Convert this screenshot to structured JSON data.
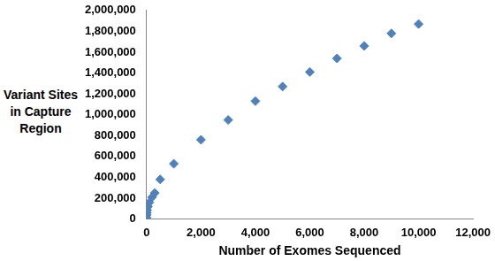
{
  "chart_data": {
    "type": "scatter",
    "x_label": "Number of Exomes Sequenced",
    "y_label": "Variant Sites in Capture Region",
    "x": [
      1,
      5,
      10,
      20,
      50,
      100,
      200,
      300,
      500,
      1000,
      2000,
      3000,
      4000,
      5000,
      6000,
      7000,
      8000,
      9000,
      10000
    ],
    "values": [
      15000,
      40000,
      60000,
      85000,
      120000,
      160000,
      210000,
      250000,
      380000,
      530000,
      760000,
      950000,
      1130000,
      1270000,
      1410000,
      1540000,
      1660000,
      1780000,
      1870000
    ],
    "color": "#4f81bd",
    "marker": "diamond",
    "grid": false,
    "xlim": [
      0,
      12000
    ],
    "xticks": [
      0,
      {
        "value": 2000,
        "label": "2,000"
      },
      {
        "value": 4000,
        "label": "4,000"
      },
      {
        "value": 6000,
        "label": "6,000"
      },
      {
        "value": 8000,
        "label": "8,000"
      },
      {
        "value": 10000,
        "label": "10,000"
      },
      {
        "value": 12000,
        "label": "12,000"
      }
    ],
    "ylim": [
      0,
      2000000
    ],
    "yticks": [
      0,
      {
        "value": 200000,
        "label": "200,000"
      },
      {
        "value": 400000,
        "label": "400,000"
      },
      {
        "value": 600000,
        "label": "600,000"
      },
      {
        "value": 800000,
        "label": "800,000"
      },
      {
        "value": 1000000,
        "label": "1,000,000"
      },
      {
        "value": 1200000,
        "label": "1,200,000"
      },
      {
        "value": 1400000,
        "label": "1,400,000"
      },
      {
        "value": 1600000,
        "label": "1,600,000"
      },
      {
        "value": 1800000,
        "label": "1,800,000"
      },
      {
        "value": 2000000,
        "label": "2,000,000"
      }
    ]
  }
}
